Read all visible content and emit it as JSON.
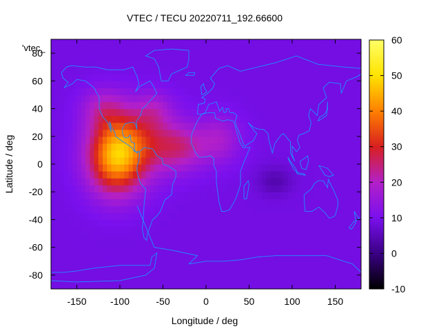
{
  "chart_data": {
    "type": "heatmap",
    "title": "VTEC / TECU 20220711_192.66600",
    "xlabel": "Longitude / deg",
    "ylabel": "Latitude / deg",
    "xlim": [
      -180,
      180
    ],
    "ylim": [
      -90,
      90
    ],
    "x_ticks": [
      -150,
      -100,
      -50,
      0,
      50,
      100,
      150
    ],
    "y_ticks": [
      -80,
      -60,
      -40,
      -20,
      0,
      20,
      40,
      60,
      80
    ],
    "colorbar": {
      "range": [
        -10,
        60
      ],
      "ticks": [
        -10,
        0,
        10,
        20,
        30,
        40,
        50,
        60
      ],
      "stops": [
        "#000000",
        "#3a0084",
        "#7a10ee",
        "#b320c8",
        "#d82020",
        "#ff8000",
        "#ffe300",
        "#ffff66"
      ]
    },
    "key_label": "'vtec_",
    "background_vtec": 9,
    "enhancements": [
      {
        "lon": -105,
        "lat": 5,
        "sigma_lon": 32,
        "sigma_lat": 26,
        "amp": 33
      },
      {
        "lon": -75,
        "lat": 18,
        "sigma_lon": 42,
        "sigma_lat": 25,
        "amp": 14
      },
      {
        "lon": -30,
        "lat": 12,
        "sigma_lon": 30,
        "sigma_lat": 16,
        "amp": 12
      },
      {
        "lon": 15,
        "lat": 18,
        "sigma_lon": 25,
        "sigma_lat": 17,
        "amp": 9
      },
      {
        "lon": -120,
        "lat": 40,
        "sigma_lon": 25,
        "sigma_lat": 15,
        "amp": 9
      },
      {
        "lon": -60,
        "lat": 40,
        "sigma_lon": 20,
        "sigma_lat": 12,
        "amp": 6
      },
      {
        "lon": 80,
        "lat": -12,
        "sigma_lon": 20,
        "sigma_lat": 10,
        "amp": -5
      }
    ],
    "coastlines": [
      [
        [
          -168,
          66
        ],
        [
          -162,
          70
        ],
        [
          -156,
          71
        ],
        [
          -141,
          70
        ],
        [
          -128,
          70
        ],
        [
          -115,
          68
        ],
        [
          -95,
          68
        ],
        [
          -85,
          70
        ],
        [
          -80,
          63
        ],
        [
          -78,
          58
        ],
        [
          -82,
          52
        ],
        [
          -77,
          56
        ],
        [
          -65,
          60
        ],
        [
          -60,
          55
        ],
        [
          -57,
          51
        ],
        [
          -66,
          45
        ],
        [
          -70,
          42
        ],
        [
          -74,
          40
        ],
        [
          -76,
          35
        ],
        [
          -81,
          31
        ],
        [
          -80,
          25
        ],
        [
          -82,
          29
        ],
        [
          -84,
          30
        ],
        [
          -89,
          30
        ],
        [
          -94,
          29
        ],
        [
          -97,
          26
        ],
        [
          -97,
          22
        ],
        [
          -95,
          19
        ],
        [
          -91,
          19
        ],
        [
          -88,
          21
        ],
        [
          -87,
          16
        ],
        [
          -83,
          15
        ],
        [
          -83,
          10
        ],
        [
          -80,
          8
        ],
        [
          -78,
          9
        ],
        [
          -83,
          9
        ],
        [
          -86,
          12
        ],
        [
          -91,
          14
        ],
        [
          -96,
          16
        ],
        [
          -105,
          20
        ],
        [
          -106,
          23
        ],
        [
          -110,
          27
        ],
        [
          -112,
          31
        ],
        [
          -110,
          23
        ],
        [
          -114,
          30
        ],
        [
          -117,
          32
        ],
        [
          -120,
          34
        ],
        [
          -124,
          40
        ],
        [
          -124,
          48
        ],
        [
          -130,
          55
        ],
        [
          -140,
          60
        ],
        [
          -150,
          61
        ],
        [
          -155,
          58
        ],
        [
          -165,
          55
        ],
        [
          -160,
          59
        ],
        [
          -166,
          62
        ],
        [
          -168,
          66
        ]
      ],
      [
        [
          -77,
          9
        ],
        [
          -72,
          12
        ],
        [
          -62,
          11
        ],
        [
          -57,
          6
        ],
        [
          -51,
          4
        ],
        [
          -50,
          0
        ],
        [
          -45,
          -1
        ],
        [
          -35,
          -5
        ],
        [
          -35,
          -9
        ],
        [
          -39,
          -15
        ],
        [
          -40,
          -22
        ],
        [
          -48,
          -26
        ],
        [
          -53,
          -34
        ],
        [
          -58,
          -38
        ],
        [
          -62,
          -40
        ],
        [
          -65,
          -45
        ],
        [
          -68,
          -50
        ],
        [
          -69,
          -55
        ],
        [
          -72,
          -53
        ],
        [
          -74,
          -47
        ],
        [
          -73,
          -40
        ],
        [
          -72,
          -30
        ],
        [
          -70,
          -18
        ],
        [
          -76,
          -14
        ],
        [
          -80,
          -6
        ],
        [
          -80,
          -1
        ],
        [
          -78,
          2
        ],
        [
          -77,
          9
        ]
      ],
      [
        [
          -17,
          21
        ],
        [
          -17,
          15
        ],
        [
          -12,
          8
        ],
        [
          -8,
          5
        ],
        [
          -2,
          5
        ],
        [
          5,
          6
        ],
        [
          9,
          4
        ],
        [
          9,
          -1
        ],
        [
          12,
          -5
        ],
        [
          12,
          -13
        ],
        [
          15,
          -27
        ],
        [
          18,
          -34
        ],
        [
          22,
          -34
        ],
        [
          27,
          -33
        ],
        [
          32,
          -28
        ],
        [
          35,
          -24
        ],
        [
          40,
          -15
        ],
        [
          40,
          -5
        ],
        [
          43,
          0
        ],
        [
          51,
          12
        ],
        [
          43,
          12
        ],
        [
          39,
          16
        ],
        [
          34,
          27
        ],
        [
          32,
          31
        ],
        [
          25,
          32
        ],
        [
          20,
          31
        ],
        [
          11,
          33
        ],
        [
          10,
          37
        ],
        [
          2,
          37
        ],
        [
          -5,
          36
        ],
        [
          -10,
          31
        ],
        [
          -13,
          27
        ],
        [
          -17,
          21
        ]
      ],
      [
        [
          -10,
          36
        ],
        [
          -9,
          43
        ],
        [
          -2,
          44
        ],
        [
          -1,
          47
        ],
        [
          -5,
          48
        ],
        [
          2,
          51
        ],
        [
          5,
          53
        ],
        [
          8,
          55
        ],
        [
          10,
          58
        ],
        [
          5,
          62
        ],
        [
          15,
          69
        ],
        [
          25,
          71
        ],
        [
          40,
          67
        ],
        [
          60,
          70
        ],
        [
          80,
          73
        ],
        [
          105,
          78
        ],
        [
          130,
          72
        ],
        [
          160,
          70
        ],
        [
          180,
          69
        ],
        [
          180,
          65
        ],
        [
          175,
          63
        ],
        [
          163,
          60
        ],
        [
          157,
          51
        ],
        [
          156,
          58
        ],
        [
          143,
          59
        ],
        [
          136,
          55
        ],
        [
          140,
          48
        ],
        [
          131,
          43
        ],
        [
          129,
          35
        ],
        [
          126,
          37
        ],
        [
          121,
          40
        ],
        [
          119,
          35
        ],
        [
          122,
          30
        ],
        [
          120,
          24
        ],
        [
          113,
          22
        ],
        [
          108,
          21
        ],
        [
          106,
          17
        ],
        [
          109,
          12
        ],
        [
          105,
          9
        ],
        [
          100,
          13
        ],
        [
          100,
          7
        ],
        [
          103,
          2
        ],
        [
          98,
          8
        ],
        [
          98,
          16
        ],
        [
          94,
          19
        ],
        [
          90,
          22
        ],
        [
          87,
          21
        ],
        [
          80,
          15
        ],
        [
          77,
          8
        ],
        [
          73,
          17
        ],
        [
          72,
          22
        ],
        [
          67,
          25
        ],
        [
          62,
          25
        ],
        [
          57,
          26
        ],
        [
          52,
          28
        ],
        [
          49,
          30
        ],
        [
          56,
          24
        ],
        [
          59,
          22
        ],
        [
          55,
          17
        ],
        [
          45,
          13
        ],
        [
          43,
          15
        ],
        [
          39,
          22
        ],
        [
          35,
          28
        ],
        [
          34,
          31
        ],
        [
          36,
          35
        ],
        [
          32,
          37
        ],
        [
          28,
          37
        ],
        [
          26,
          40
        ],
        [
          23,
          40
        ],
        [
          24,
          38
        ],
        [
          21,
          37
        ],
        [
          19,
          41
        ],
        [
          16,
          38
        ],
        [
          13,
          43
        ],
        [
          12,
          45
        ],
        [
          8,
          44
        ],
        [
          3,
          43
        ],
        [
          -1,
          37
        ],
        [
          -5,
          36
        ],
        [
          -10,
          36
        ]
      ],
      [
        [
          114,
          -22
        ],
        [
          114,
          -26
        ],
        [
          115,
          -34
        ],
        [
          123,
          -34
        ],
        [
          131,
          -31
        ],
        [
          138,
          -35
        ],
        [
          143,
          -39
        ],
        [
          148,
          -38
        ],
        [
          150,
          -37
        ],
        [
          153,
          -30
        ],
        [
          153,
          -26
        ],
        [
          149,
          -20
        ],
        [
          145,
          -15
        ],
        [
          142,
          -11
        ],
        [
          141,
          -17
        ],
        [
          136,
          -12
        ],
        [
          130,
          -12
        ],
        [
          126,
          -14
        ],
        [
          122,
          -18
        ],
        [
          114,
          -22
        ]
      ],
      [
        [
          -180,
          -84
        ],
        [
          -150,
          -85
        ],
        [
          -100,
          -84
        ],
        [
          -70,
          -80
        ],
        [
          -60,
          -75
        ],
        [
          -57,
          -64
        ],
        [
          -63,
          -67
        ],
        [
          -65,
          -73
        ],
        [
          -75,
          -73
        ],
        [
          -100,
          -73
        ],
        [
          -130,
          -75
        ],
        [
          -150,
          -77
        ],
        [
          -165,
          -78
        ],
        [
          -180,
          -78
        ]
      ],
      [
        [
          -20,
          -72
        ],
        [
          0,
          -70
        ],
        [
          20,
          -70
        ],
        [
          40,
          -69
        ],
        [
          60,
          -67
        ],
        [
          80,
          -66
        ],
        [
          100,
          -66
        ],
        [
          120,
          -66
        ],
        [
          140,
          -66
        ],
        [
          160,
          -70
        ],
        [
          170,
          -72
        ],
        [
          180,
          -78
        ]
      ],
      [
        [
          -52,
          60
        ],
        [
          -44,
          60
        ],
        [
          -40,
          65
        ],
        [
          -22,
          70
        ],
        [
          -20,
          75
        ],
        [
          -20,
          82
        ],
        [
          -40,
          83
        ],
        [
          -60,
          82
        ],
        [
          -70,
          78
        ],
        [
          -60,
          76
        ],
        [
          -55,
          70
        ],
        [
          -52,
          60
        ]
      ],
      [
        [
          -5,
          50
        ],
        [
          -6,
          56
        ],
        [
          -3,
          58
        ],
        [
          -2,
          55
        ],
        [
          1,
          52
        ],
        [
          -5,
          50
        ]
      ],
      [
        [
          -24,
          64
        ],
        [
          -14,
          64
        ],
        [
          -13,
          66
        ],
        [
          -20,
          66
        ],
        [
          -24,
          64
        ]
      ],
      [
        [
          130,
          31
        ],
        [
          132,
          34
        ],
        [
          136,
          35
        ],
        [
          141,
          39
        ],
        [
          141,
          45
        ],
        [
          140,
          35
        ],
        [
          135,
          33
        ],
        [
          130,
          31
        ]
      ],
      [
        [
          95,
          5
        ],
        [
          98,
          2
        ],
        [
          104,
          -3
        ],
        [
          106,
          -6
        ],
        [
          102,
          -4
        ],
        [
          96,
          3
        ],
        [
          95,
          5
        ]
      ],
      [
        [
          105,
          -6
        ],
        [
          114,
          -7
        ],
        [
          115,
          -8
        ],
        [
          106,
          -7
        ],
        [
          105,
          -6
        ]
      ],
      [
        [
          109,
          2
        ],
        [
          114,
          4
        ],
        [
          118,
          6
        ],
        [
          119,
          2
        ],
        [
          116,
          -4
        ],
        [
          111,
          -3
        ],
        [
          109,
          2
        ]
      ],
      [
        [
          131,
          -1
        ],
        [
          141,
          -3
        ],
        [
          148,
          -8
        ],
        [
          143,
          -9
        ],
        [
          138,
          -8
        ],
        [
          131,
          -1
        ]
      ],
      [
        [
          44,
          -25
        ],
        [
          47,
          -25
        ],
        [
          50,
          -15
        ],
        [
          49,
          -12
        ],
        [
          44,
          -16
        ],
        [
          44,
          -25
        ]
      ],
      [
        [
          172,
          -34
        ],
        [
          175,
          -37
        ],
        [
          178,
          -39
        ],
        [
          174,
          -41
        ],
        [
          172,
          -34
        ]
      ],
      [
        [
          166,
          -46
        ],
        [
          172,
          -41
        ],
        [
          174,
          -42
        ],
        [
          169,
          -47
        ],
        [
          166,
          -46
        ]
      ],
      [
        [
          -80,
          -30
        ],
        [
          -60,
          -60
        ],
        [
          -40,
          -62
        ],
        [
          -10,
          -66
        ],
        [
          -20,
          -72
        ]
      ]
    ]
  }
}
